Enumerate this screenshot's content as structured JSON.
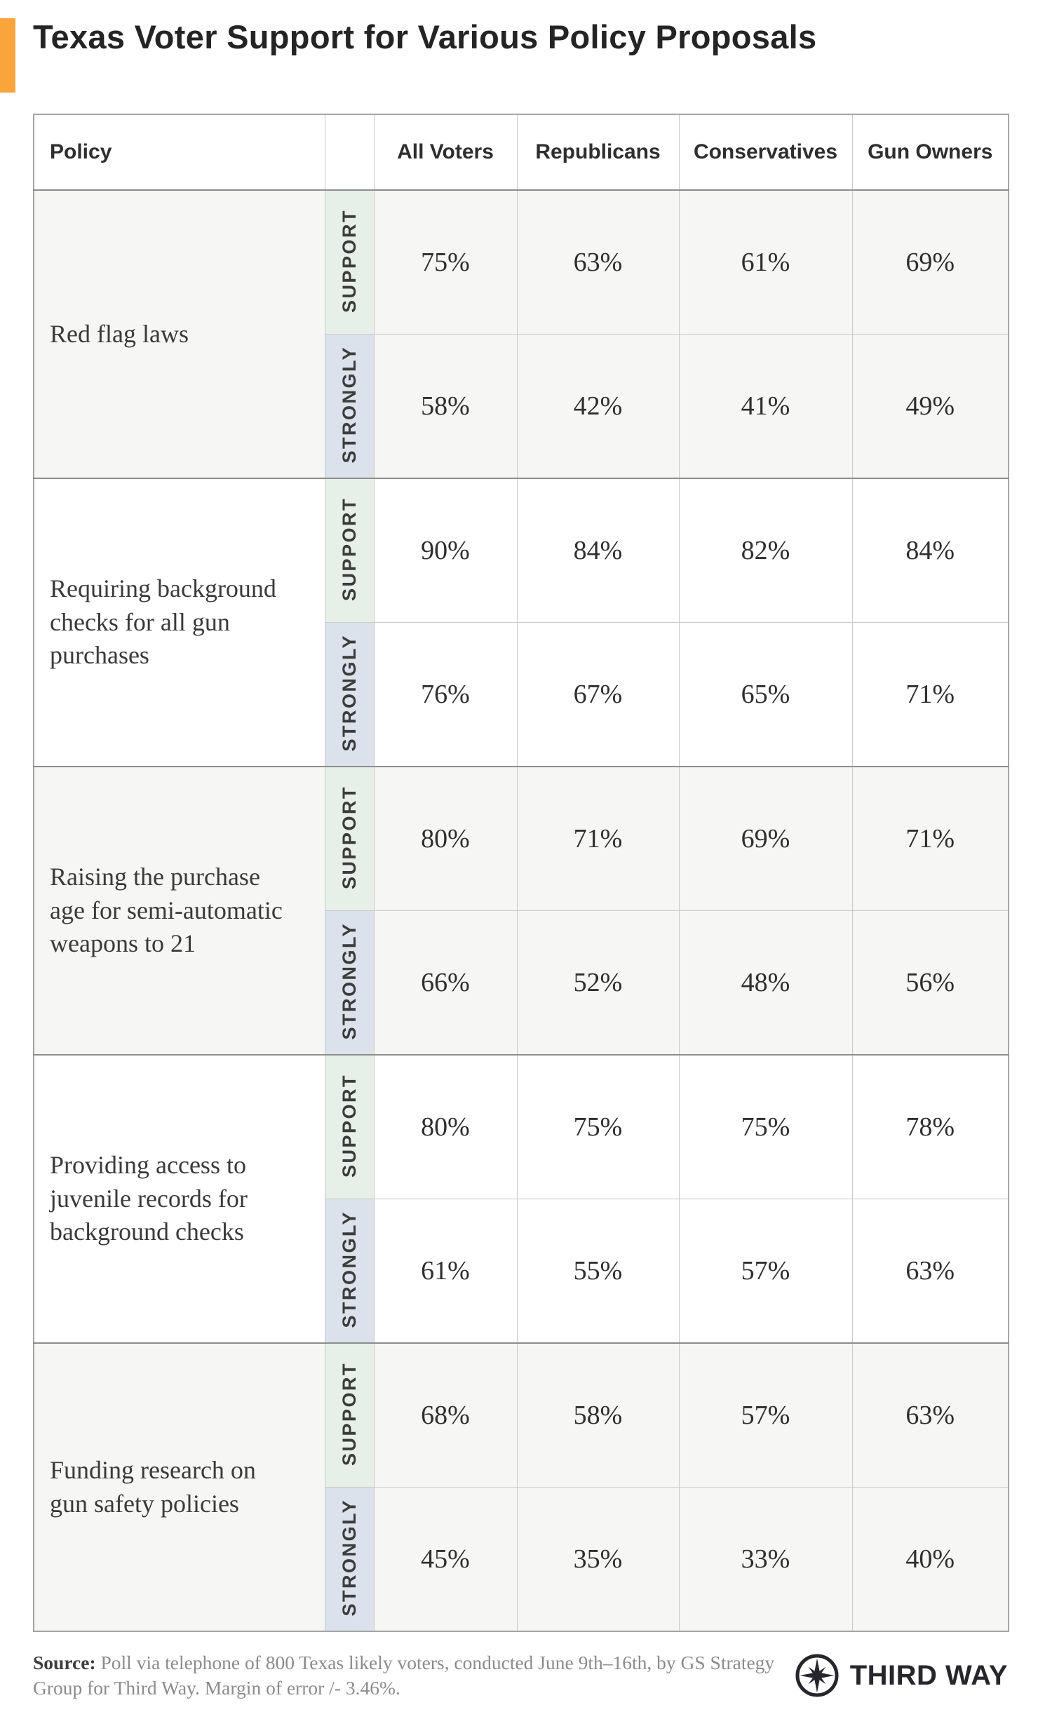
{
  "page": {
    "title": "Texas Voter Support for Various Policy Proposals",
    "accent_color": "#F9A53C"
  },
  "table": {
    "policy_header": "Policy",
    "row_labels": {
      "support": "SUPPORT",
      "strongly": "STRONGLY"
    },
    "colors": {
      "support_bg": "#E6EFE8",
      "strongly_bg": "#DBE2EB",
      "alt_row_bg": "#F6F6F5"
    }
  },
  "chart_data": {
    "type": "table",
    "title": "Texas Voter Support for Various Policy Proposals",
    "columns": [
      "All Voters",
      "Republicans",
      "Conservatives",
      "Gun Owners"
    ],
    "measures": [
      "Support",
      "Strongly support"
    ],
    "unit": "%",
    "rows": [
      {
        "policy": "Red flag laws",
        "support": [
          75,
          63,
          61,
          69
        ],
        "strongly": [
          58,
          42,
          41,
          49
        ]
      },
      {
        "policy": "Requiring background checks for all gun purchases",
        "support": [
          90,
          84,
          82,
          84
        ],
        "strongly": [
          76,
          67,
          65,
          71
        ]
      },
      {
        "policy": "Raising the purchase age for semi-automatic weapons to 21",
        "support": [
          80,
          71,
          69,
          71
        ],
        "strongly": [
          66,
          52,
          48,
          56
        ]
      },
      {
        "policy": "Providing access to juvenile records for background checks",
        "support": [
          80,
          75,
          75,
          78
        ],
        "strongly": [
          61,
          55,
          57,
          63
        ]
      },
      {
        "policy": "Funding research on gun safety policies",
        "support": [
          68,
          58,
          57,
          63
        ],
        "strongly": [
          45,
          35,
          33,
          40
        ]
      }
    ]
  },
  "footer": {
    "source_label": "Source:",
    "source_text": "Poll via telephone of 800 Texas likely voters, conducted June 9th–16th, by GS Strategy Group for Third Way. Margin of error /- 3.46%.",
    "logo": {
      "icon": "compass-star-icon",
      "wordmark": "THIRD WAY"
    }
  }
}
